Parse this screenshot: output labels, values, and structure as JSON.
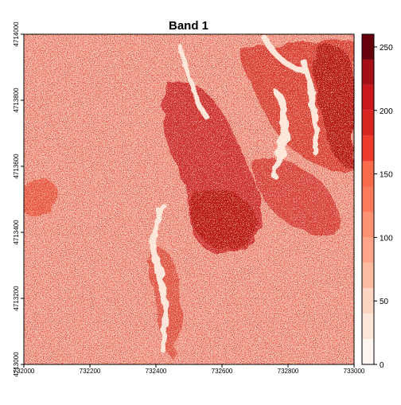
{
  "map": {
    "title": "Band 1",
    "x_ticks": [
      "732000",
      "732200",
      "732400",
      "732600",
      "732800",
      "733000"
    ],
    "x_tick_values": [
      732000,
      732200,
      732400,
      732600,
      732800,
      733000
    ],
    "y_ticks": [
      "4713000",
      "4713200",
      "4713400",
      "4713600",
      "4713800",
      "4714000"
    ],
    "y_tick_values": [
      4713000,
      4713200,
      4713400,
      4713600,
      4713800,
      4714000
    ],
    "x_range": [
      732000,
      733000
    ],
    "y_range": [
      4713000,
      4714000
    ],
    "palette_name": "Reds",
    "background_color": "#f3b8a0",
    "feature_colors": {
      "dark": "#c41a16",
      "medium": "#e54a30",
      "pale": "#fde4d6"
    }
  },
  "legend": {
    "labels": [
      "0",
      "50",
      "100",
      "150",
      "200",
      "250"
    ],
    "values": [
      0,
      50,
      100,
      150,
      200,
      250
    ],
    "range": [
      0,
      260
    ],
    "bins": [
      {
        "to": 20,
        "color": "#fff5f0"
      },
      {
        "to": 40,
        "color": "#fee5d9"
      },
      {
        "to": 60,
        "color": "#fdd4c2"
      },
      {
        "to": 80,
        "color": "#fcbba1"
      },
      {
        "to": 100,
        "color": "#fca58a"
      },
      {
        "to": 120,
        "color": "#fc9272"
      },
      {
        "to": 140,
        "color": "#fb7a5a"
      },
      {
        "to": 160,
        "color": "#fb6a4a"
      },
      {
        "to": 180,
        "color": "#ef3b2c"
      },
      {
        "to": 200,
        "color": "#d9251f"
      },
      {
        "to": 220,
        "color": "#cb181d"
      },
      {
        "to": 240,
        "color": "#a50f15"
      },
      {
        "to": 260,
        "color": "#67000d"
      }
    ]
  }
}
